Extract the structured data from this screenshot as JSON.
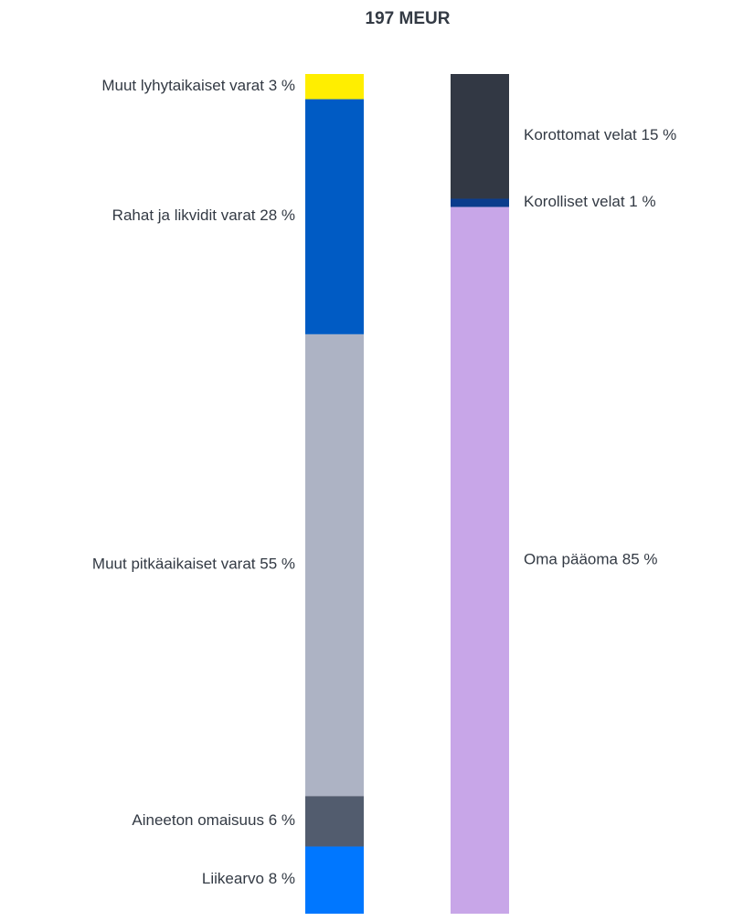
{
  "chart_data": {
    "type": "bar",
    "stacked": true,
    "title": "197 MEUR",
    "bars": [
      {
        "segments": [
          {
            "name": "Muut lyhytaikaiset varat",
            "value": 3,
            "value_label": "3 %",
            "color": "#ffee00"
          },
          {
            "name": "Rahat ja likvidit varat",
            "value": 28,
            "value_label": "28 %",
            "color": "#005bc4"
          },
          {
            "name": "Muut pitkäaikaiset varat",
            "value": 55,
            "value_label": "55 %",
            "color": "#adb3c4"
          },
          {
            "name": "Aineeton omaisuus",
            "value": 6,
            "value_label": "6 %",
            "color": "#525c6e"
          },
          {
            "name": "Liikearvo",
            "value": 8,
            "value_label": "8 %",
            "color": "#0077ff"
          }
        ]
      },
      {
        "segments": [
          {
            "name": "Korottomat velat",
            "value": 15,
            "value_label": "15 %",
            "color": "#323844"
          },
          {
            "name": "Korolliset velat",
            "value": 1,
            "value_label": "1 %",
            "color": "#0b3c8c"
          },
          {
            "name": "Oma pääoma",
            "value": 85,
            "value_label": "85 %",
            "color": "#c8a6e8"
          }
        ]
      }
    ]
  }
}
